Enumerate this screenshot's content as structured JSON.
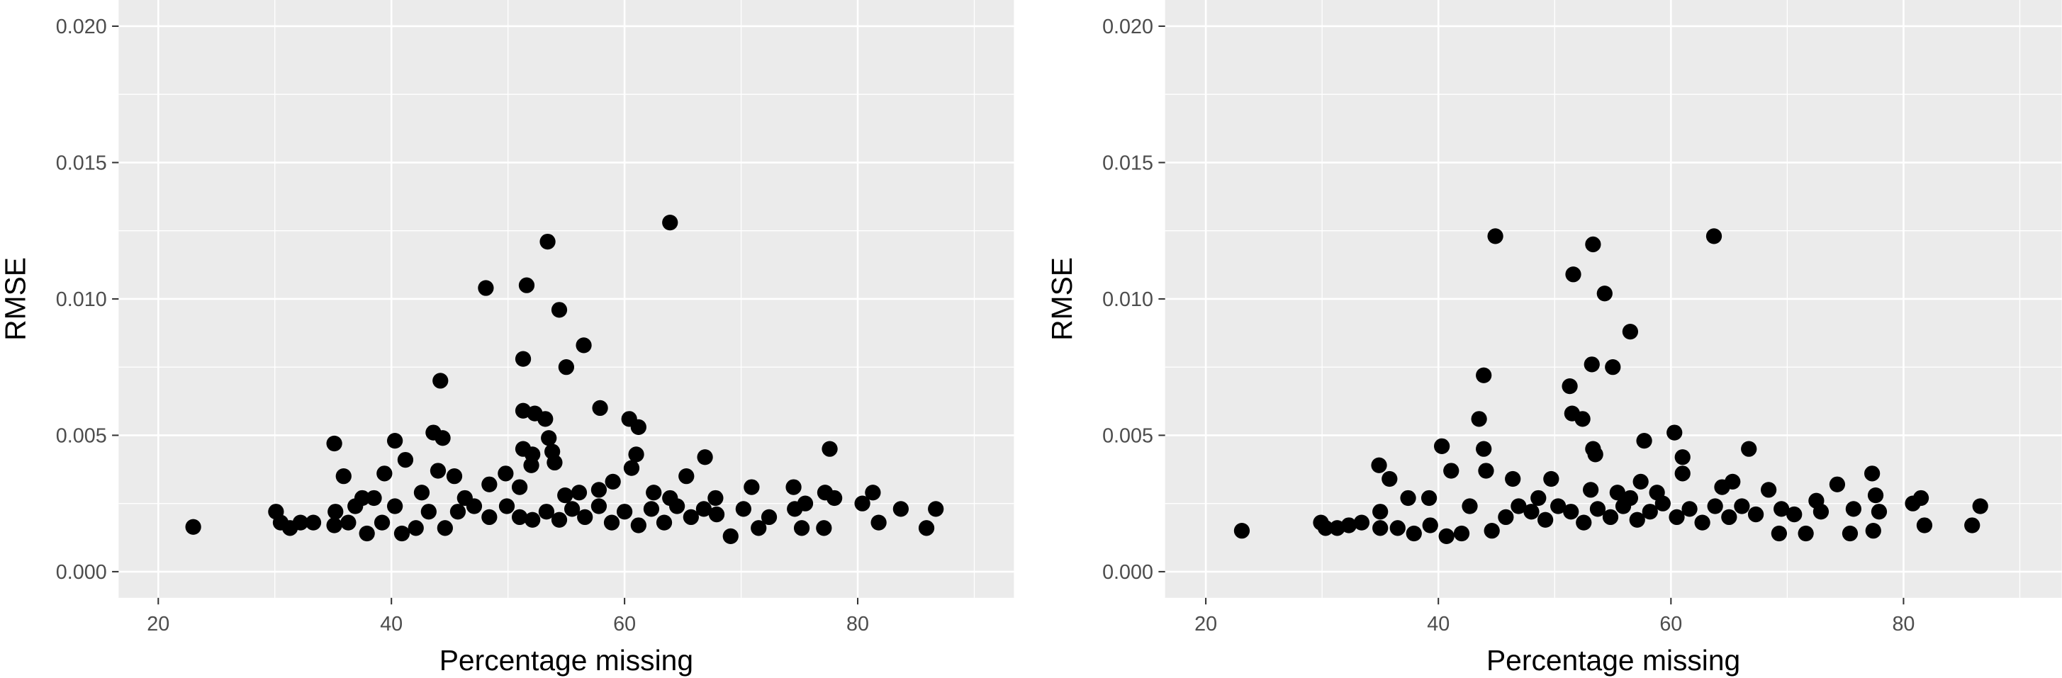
{
  "chart_data": [
    {
      "type": "scatter",
      "x_label": "Percentage missing",
      "y_label": "RMSE",
      "color": "#000000",
      "grid": true,
      "xlim": [
        16.6,
        93.4
      ],
      "ylim": [
        -0.00096,
        0.02096
      ],
      "xticks": [
        20,
        40,
        60,
        80
      ],
      "x_minor_ticks": [
        30,
        50,
        70,
        90
      ],
      "yticks": [
        {
          "value": 0,
          "label": "0.000"
        },
        {
          "value": 0.005,
          "label": "0.005"
        },
        {
          "value": 0.01,
          "label": "0.010"
        },
        {
          "value": 0.015,
          "label": "0.015"
        },
        {
          "value": 0.02,
          "label": "0.020"
        }
      ],
      "y_minor_ticks": [
        0.0025,
        0.0075,
        0.0125,
        0.0175
      ],
      "x": [
        23.0,
        48.1,
        51.6,
        53.4,
        63.9,
        54.4,
        56.5,
        55.0,
        51.3,
        44.2,
        57.9,
        51.3,
        52.3,
        53.2,
        60.4,
        61.2,
        43.6,
        44.4,
        53.5,
        40.3,
        35.1,
        77.6,
        51.3,
        53.8,
        52.1,
        61.0,
        66.9,
        41.2,
        54.0,
        52.0,
        60.6,
        39.4,
        44.0,
        35.9,
        45.4,
        49.8,
        65.3,
        59.0,
        74.5,
        42.6,
        70.9,
        77.2,
        81.3,
        37.5,
        38.5,
        67.8,
        78.0,
        80.4,
        83.7,
        86.7,
        85.9,
        81.8,
        77.1,
        75.2,
        71.5,
        69.1,
        30.1,
        30.5,
        31.3,
        32.2,
        33.3,
        35.2,
        35.1,
        36.3,
        37.9,
        39.2,
        40.9,
        42.1,
        43.2,
        44.6,
        45.7,
        47.1,
        48.4,
        49.9,
        51.0,
        52.1,
        53.3,
        54.4,
        55.5,
        56.6,
        57.8,
        58.9,
        60.0,
        61.2,
        62.3,
        63.4,
        64.5,
        65.7,
        66.8,
        67.9,
        70.2,
        72.4,
        74.6,
        75.5,
        62.5,
        63.9,
        56.1,
        57.8,
        51.0,
        48.4,
        54.9,
        46.3,
        40.3,
        36.9
      ],
      "y": [
        0.00164,
        0.0104,
        0.0105,
        0.0121,
        0.0128,
        0.0096,
        0.0083,
        0.0075,
        0.0078,
        0.007,
        0.006,
        0.0059,
        0.0058,
        0.0056,
        0.0056,
        0.0053,
        0.0051,
        0.0049,
        0.0049,
        0.0048,
        0.0047,
        0.0045,
        0.0045,
        0.0044,
        0.0043,
        0.0043,
        0.0042,
        0.0041,
        0.004,
        0.0039,
        0.0038,
        0.0036,
        0.0037,
        0.0035,
        0.0035,
        0.0036,
        0.0035,
        0.0033,
        0.0031,
        0.0029,
        0.0031,
        0.0029,
        0.0029,
        0.0027,
        0.0027,
        0.0027,
        0.0027,
        0.0025,
        0.0023,
        0.0023,
        0.0016,
        0.0018,
        0.0016,
        0.0016,
        0.0016,
        0.0013,
        0.0022,
        0.0018,
        0.0016,
        0.0018,
        0.0018,
        0.0022,
        0.0017,
        0.0018,
        0.0014,
        0.0018,
        0.0014,
        0.0016,
        0.0022,
        0.0016,
        0.0022,
        0.0024,
        0.002,
        0.0024,
        0.002,
        0.0019,
        0.0022,
        0.0019,
        0.0023,
        0.002,
        0.0024,
        0.0018,
        0.0022,
        0.0017,
        0.0023,
        0.0018,
        0.0024,
        0.002,
        0.0023,
        0.0021,
        0.0023,
        0.002,
        0.0023,
        0.0025,
        0.0029,
        0.0027,
        0.0029,
        0.003,
        0.0031,
        0.0032,
        0.0028,
        0.0027,
        0.0024,
        0.0024
      ]
    },
    {
      "type": "scatter",
      "x_label": "Percentage missing",
      "y_label": "RMSE",
      "color": "#000000",
      "grid": true,
      "xlim": [
        16.5,
        93.6
      ],
      "ylim": [
        -0.00096,
        0.02096
      ],
      "xticks": [
        20,
        40,
        60,
        80
      ],
      "x_minor_ticks": [
        30,
        50,
        70,
        90
      ],
      "yticks": [
        {
          "value": 0,
          "label": "0.000"
        },
        {
          "value": 0.005,
          "label": "0.005"
        },
        {
          "value": 0.01,
          "label": "0.010"
        },
        {
          "value": 0.015,
          "label": "0.015"
        },
        {
          "value": 0.02,
          "label": "0.020"
        }
      ],
      "y_minor_ticks": [
        0.0025,
        0.0075,
        0.0125,
        0.0175
      ],
      "x": [
        23.1,
        44.9,
        53.3,
        63.7,
        51.6,
        54.3,
        56.5,
        53.2,
        55.0,
        43.9,
        51.3,
        51.5,
        43.5,
        52.4,
        60.3,
        57.7,
        40.3,
        53.3,
        43.9,
        66.7,
        53.5,
        61.0,
        34.9,
        41.1,
        44.1,
        61.0,
        35.8,
        65.3,
        77.3,
        74.3,
        46.4,
        49.7,
        57.4,
        64.4,
        37.4,
        39.2,
        68.4,
        72.5,
        77.6,
        81.5,
        86.6,
        85.9,
        81.8,
        77.4,
        75.4,
        71.6,
        69.3,
        29.9,
        30.3,
        31.3,
        32.3,
        33.4,
        35.0,
        35.0,
        36.5,
        37.9,
        39.3,
        40.7,
        42.0,
        42.7,
        44.6,
        45.8,
        46.9,
        48.0,
        49.2,
        50.3,
        51.4,
        52.5,
        53.7,
        54.8,
        55.9,
        57.1,
        58.2,
        59.3,
        60.5,
        61.6,
        62.7,
        63.8,
        65.0,
        66.1,
        67.3,
        69.5,
        70.6,
        72.9,
        75.7,
        77.9,
        80.8,
        48.6,
        56.5,
        58.8,
        53.1,
        55.4
      ],
      "y": [
        0.0015,
        0.0123,
        0.012,
        0.0123,
        0.0109,
        0.0102,
        0.0088,
        0.0076,
        0.0075,
        0.0072,
        0.0068,
        0.0058,
        0.0056,
        0.0056,
        0.0051,
        0.0048,
        0.0046,
        0.0045,
        0.0045,
        0.0045,
        0.0043,
        0.0042,
        0.0039,
        0.0037,
        0.0037,
        0.0036,
        0.0034,
        0.0033,
        0.0036,
        0.0032,
        0.0034,
        0.0034,
        0.0033,
        0.0031,
        0.0027,
        0.0027,
        0.003,
        0.0026,
        0.0028,
        0.0027,
        0.0024,
        0.0017,
        0.0017,
        0.0015,
        0.0014,
        0.0014,
        0.0014,
        0.0018,
        0.0016,
        0.0016,
        0.0017,
        0.0018,
        0.0022,
        0.0016,
        0.0016,
        0.0014,
        0.0017,
        0.0013,
        0.0014,
        0.0024,
        0.0015,
        0.002,
        0.0024,
        0.0022,
        0.0019,
        0.0024,
        0.0022,
        0.0018,
        0.0023,
        0.002,
        0.0024,
        0.0019,
        0.0022,
        0.0025,
        0.002,
        0.0023,
        0.0018,
        0.0024,
        0.002,
        0.0024,
        0.0021,
        0.0023,
        0.0021,
        0.0022,
        0.0023,
        0.0022,
        0.0025,
        0.0027,
        0.0027,
        0.0029,
        0.003,
        0.0029
      ]
    }
  ]
}
